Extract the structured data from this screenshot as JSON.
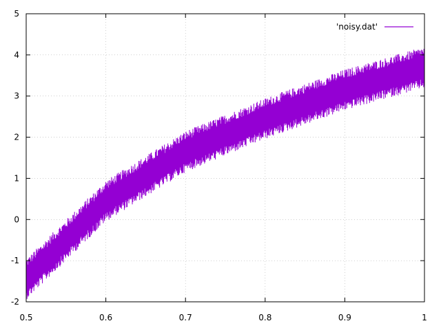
{
  "chart_data": {
    "type": "line",
    "title": "",
    "xlabel": "",
    "ylabel": "",
    "xlim": [
      0.5,
      1
    ],
    "ylim": [
      -2,
      5
    ],
    "x_ticks": [
      "0.5",
      "0.6",
      "0.7",
      "0.8",
      "0.9",
      "1"
    ],
    "y_ticks": [
      "-2",
      "-1",
      "0",
      "1",
      "2",
      "3",
      "4",
      "5"
    ],
    "grid": true,
    "legend_position": "top-right",
    "series": [
      {
        "name": "'noisy.dat'",
        "color": "#9400d3",
        "x_range": [
          0.5,
          1
        ],
        "center_band": [
          {
            "x": 0.5,
            "y": -1.45
          },
          {
            "x": 0.6,
            "y": 0.45
          },
          {
            "x": 0.7,
            "y": 1.65
          },
          {
            "x": 0.8,
            "y": 2.45
          },
          {
            "x": 0.9,
            "y": 3.15
          },
          {
            "x": 1.0,
            "y": 3.7
          }
        ],
        "noise_amplitude": 0.5
      }
    ]
  }
}
